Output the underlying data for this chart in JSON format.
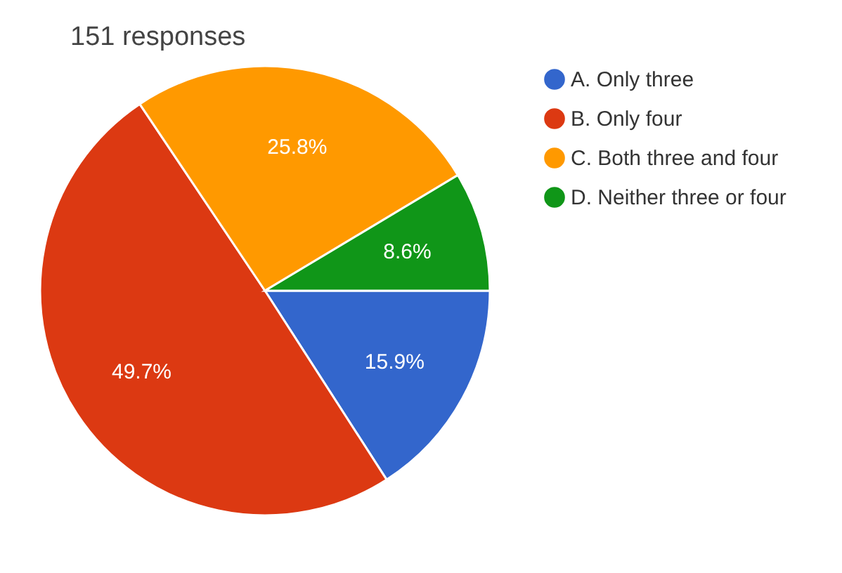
{
  "chart_data": {
    "type": "pie",
    "title": "151 responses",
    "categories": [
      "A. Only three",
      "B. Only four",
      "C. Both three and four",
      "D. Neither three or four"
    ],
    "values": [
      15.9,
      49.7,
      25.8,
      8.6
    ],
    "colors": [
      "#3366cc",
      "#dc3912",
      "#ff9900",
      "#109618"
    ],
    "value_labels": [
      "15.9%",
      "49.7%",
      "25.8%",
      "8.6%"
    ],
    "legend": "right"
  }
}
